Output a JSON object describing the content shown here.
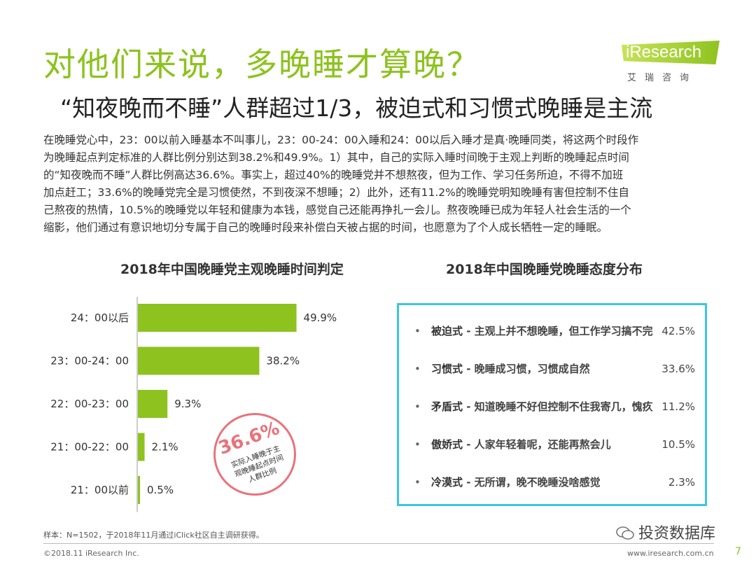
{
  "header": {
    "title": "对他们来说，多晚睡才算晚？",
    "subtitle": "“知夜晚而不睡”人群超过1/3，被迫式和习惯式晚睡是主流"
  },
  "brand": {
    "logo_text": "iResearch",
    "logo_sub": "艾瑞咨询",
    "accent_color": "#8dc21f"
  },
  "intro": {
    "lines": [
      "在晚睡党心中，23：00以前入睡基本不叫事儿，23：00-24：00入睡和24：00以后入睡才是真·晚睡同类，将这两个时段作",
      "为晚睡起点判定标准的人群比例分别达到38.2%和49.9%。1）其中，自己的实际入睡时间晚于主观上判断的晚睡起点时间",
      "的“知夜晚而不睡”人群比例高达36.6%。事实上，超过40%的晚睡党并不想熬夜，但为工作、学习任务所迫，不得不加班",
      "加点赶工；33.6%的晚睡党完全是习惯使然，不到夜深不想睡；2）此外，还有11.2%的晚睡党明知晚睡有害但控制不住自",
      "己熬夜的热情，10.5%的晚睡党以年轻和健康为本钱，感觉自己还能再挣扎一会儿。熬夜晚睡已成为年轻人社会生活的一个",
      "缩影，他们通过有意识地切分专属于自己的晚睡时段来补偿白天被占据的时间，也愿意为了个人成长牺牲一定的睡眠。"
    ]
  },
  "chart_data": [
    {
      "type": "bar",
      "orientation": "horizontal",
      "title": "2018年中国晚睡党主观晚睡时间判定",
      "categories": [
        "24：00以后",
        "23：00-24：00",
        "22：00-23：00",
        "21：00-22：00",
        "21：00以前"
      ],
      "values": [
        49.9,
        38.2,
        9.3,
        2.1,
        0.5
      ],
      "value_labels": [
        "49.9%",
        "38.2%",
        "9.3%",
        "2.1%",
        "0.5%"
      ],
      "bar_color": "#8dc21f",
      "xlim": [
        0,
        100
      ],
      "grid": false,
      "annotation": {
        "value": "36.6%",
        "caption_lines": [
          "实际入睡晚于主",
          "观晚睡起点时间",
          "人群比例"
        ],
        "color": "#e8737b"
      }
    },
    {
      "type": "table",
      "title": "2018年中国晚睡党晚睡态度分布",
      "rows": [
        {
          "label": "被迫式",
          "desc": " - 主观上并不想晚睡，但工作学习搞不完",
          "value": "42.5%"
        },
        {
          "label": "习惯式",
          "desc": " - 晚睡成习惯，习惯成自然",
          "value": "33.6%"
        },
        {
          "label": "矛盾式",
          "desc": " - 知道晚睡不好但控制不住我寄几，愧疚",
          "value": "11.2%"
        },
        {
          "label": "傲娇式",
          "desc": " - 人家年轻着呢，还能再熬会儿",
          "value": "10.5%"
        },
        {
          "label": "冷漠式",
          "desc": " - 无所谓，晚不晚睡没啥感觉",
          "value": "2.3%"
        }
      ],
      "border_color": "#3ec5e0",
      "bullet": "•"
    }
  ],
  "footer": {
    "footnote": "样本：N=1502，于2018年11月通过iClick社区自主调研获得。",
    "copyright": "©2018.11 iResearch Inc.",
    "website": "www.iresearch.com.cn",
    "page": "7",
    "wechat_label": "投资数据库",
    "wechat_icon": "wechat-icon"
  }
}
